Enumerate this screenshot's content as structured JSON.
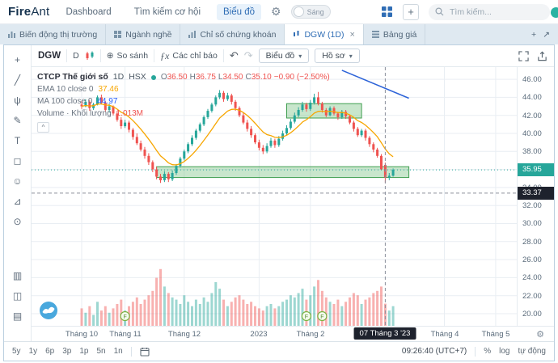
{
  "navbar": {
    "logo_fire": "Fire",
    "logo_ant": "Ant",
    "items": [
      {
        "label": "Dashboard"
      },
      {
        "label": "Tìm kiếm cơ hội"
      },
      {
        "label": "Biểu đồ"
      }
    ],
    "theme_toggle_label": "Sáng",
    "search_placeholder": "Tìm kiếm..."
  },
  "tabbar": {
    "tabs": [
      {
        "label": "Biến động thị trường"
      },
      {
        "label": "Ngành nghề"
      },
      {
        "label": "Chỉ số chứng khoán"
      },
      {
        "label": "DGW (1D)"
      },
      {
        "label": "Bảng giá"
      }
    ],
    "active": "DGW (1D)",
    "close_glyph": "×",
    "add_glyph": "+",
    "popout_glyph": "↗"
  },
  "toolbar": {
    "symbol": "DGW",
    "interval": "D",
    "compare_icon": "⊕",
    "compare": "So sánh",
    "indicators": "Các chỉ báo",
    "undo_glyph": "↶",
    "redo_glyph": "↷",
    "chart_menu": "Biểu đồ",
    "profile_menu": "Hồ sơ",
    "caret": "▾"
  },
  "tools": [
    {
      "name": "crosshair",
      "glyph": "+"
    },
    {
      "name": "trend-line",
      "glyph": "╱"
    },
    {
      "name": "pitchfork",
      "glyph": "ψ"
    },
    {
      "name": "brush",
      "glyph": "✎"
    },
    {
      "name": "text",
      "glyph": "T"
    },
    {
      "name": "shapes",
      "glyph": "◻"
    },
    {
      "name": "emoji",
      "glyph": "☺"
    },
    {
      "name": "measure",
      "glyph": "⊿"
    },
    {
      "name": "zoom",
      "glyph": "⊙"
    },
    {
      "name": "bar-pattern",
      "glyph": "▥",
      "gap": true
    },
    {
      "name": "forecast",
      "glyph": "◫"
    },
    {
      "name": "range-tool",
      "glyph": "▤"
    }
  ],
  "legend": {
    "name": "CTCP Thế giới số",
    "interval": "1D",
    "exchange": "HSX",
    "ohlc": [
      {
        "k": "O",
        "v": "36.50"
      },
      {
        "k": "H",
        "v": "36.75"
      },
      {
        "k": "L",
        "v": "34.50"
      },
      {
        "k": "C",
        "v": "35.10"
      }
    ],
    "change": "−0.90 (−2.50%)",
    "rows": [
      {
        "label": "EMA 10 close 0",
        "value": "37.46",
        "color": "#f7a600"
      },
      {
        "label": "MA 100 close 0",
        "value": "44.97",
        "color": "#2962ff"
      },
      {
        "label": "Volume · Khối lượng",
        "value": "1.013M",
        "color": "#ef5350"
      }
    ],
    "collapse_glyph": "^"
  },
  "chart_data": {
    "type": "candlestick",
    "symbol": "DGW",
    "up_color": "#26a69a",
    "down_color": "#ef5350",
    "ema_color": "#f7a600",
    "ma_color": "#2d63d8",
    "ylim": [
      19.5,
      47.35
    ],
    "candles": [
      [
        43.2,
        43.6,
        42.7,
        43.0
      ],
      [
        43.0,
        43.8,
        42.9,
        43.5
      ],
      [
        43.5,
        43.7,
        42.5,
        42.8
      ],
      [
        42.8,
        43.4,
        42.6,
        43.2
      ],
      [
        43.2,
        44.2,
        43.1,
        44.0
      ],
      [
        44.0,
        44.3,
        43.2,
        43.4
      ],
      [
        43.4,
        43.6,
        42.4,
        42.6
      ],
      [
        42.6,
        43.3,
        42.3,
        43.0
      ],
      [
        43.0,
        43.1,
        42.0,
        42.2
      ],
      [
        42.2,
        42.5,
        41.3,
        41.5
      ],
      [
        41.5,
        41.8,
        40.5,
        40.8
      ],
      [
        40.8,
        41.5,
        40.6,
        41.2
      ],
      [
        41.2,
        41.4,
        40.1,
        40.4
      ],
      [
        40.4,
        40.6,
        39.3,
        39.6
      ],
      [
        39.6,
        40.0,
        38.7,
        38.9
      ],
      [
        38.9,
        39.2,
        38.0,
        38.2
      ],
      [
        38.2,
        38.5,
        37.2,
        37.5
      ],
      [
        37.5,
        37.8,
        36.5,
        36.8
      ],
      [
        36.8,
        37.0,
        35.7,
        36.0
      ],
      [
        36.0,
        36.3,
        34.9,
        35.2
      ],
      [
        35.2,
        35.5,
        34.5,
        34.8
      ],
      [
        34.8,
        35.8,
        34.6,
        35.5
      ],
      [
        35.5,
        35.7,
        34.6,
        34.9
      ],
      [
        34.9,
        35.9,
        34.7,
        35.6
      ],
      [
        35.6,
        36.6,
        35.4,
        36.4
      ],
      [
        36.4,
        37.4,
        36.2,
        37.2
      ],
      [
        37.2,
        38.2,
        37.0,
        38.0
      ],
      [
        38.0,
        39.0,
        37.8,
        38.8
      ],
      [
        38.8,
        39.8,
        38.6,
        39.5
      ],
      [
        39.5,
        40.5,
        39.3,
        40.3
      ],
      [
        40.3,
        41.2,
        40.1,
        41.0
      ],
      [
        41.0,
        42.0,
        40.8,
        41.8
      ],
      [
        41.8,
        42.7,
        41.6,
        42.5
      ],
      [
        42.5,
        43.4,
        42.3,
        43.2
      ],
      [
        43.2,
        44.2,
        43.0,
        44.0
      ],
      [
        44.0,
        44.8,
        43.8,
        44.5
      ],
      [
        44.5,
        44.7,
        43.5,
        43.8
      ],
      [
        43.8,
        44.5,
        43.6,
        44.2
      ],
      [
        44.2,
        44.4,
        43.2,
        43.5
      ],
      [
        43.5,
        43.7,
        42.5,
        42.8
      ],
      [
        42.8,
        43.0,
        41.8,
        42.0
      ],
      [
        42.0,
        42.3,
        41.0,
        41.2
      ],
      [
        41.2,
        41.5,
        40.2,
        40.5
      ],
      [
        40.5,
        40.8,
        39.5,
        39.8
      ],
      [
        39.8,
        40.0,
        38.8,
        39.0
      ],
      [
        39.0,
        39.3,
        38.1,
        38.4
      ],
      [
        38.4,
        38.7,
        37.7,
        38.0
      ],
      [
        38.0,
        38.9,
        37.8,
        38.6
      ],
      [
        38.6,
        39.5,
        38.4,
        39.2
      ],
      [
        39.2,
        39.4,
        38.4,
        38.7
      ],
      [
        38.7,
        39.7,
        38.5,
        39.4
      ],
      [
        39.4,
        40.3,
        39.2,
        40.0
      ],
      [
        40.0,
        40.9,
        39.8,
        40.6
      ],
      [
        40.6,
        41.6,
        40.4,
        41.3
      ],
      [
        41.3,
        42.3,
        41.1,
        42.0
      ],
      [
        42.0,
        42.9,
        41.8,
        42.6
      ],
      [
        42.6,
        43.5,
        42.4,
        43.2
      ],
      [
        43.2,
        43.4,
        42.4,
        42.7
      ],
      [
        42.7,
        43.7,
        42.5,
        43.4
      ],
      [
        43.4,
        44.4,
        43.2,
        44.0
      ],
      [
        44.0,
        44.6,
        43.1,
        43.3
      ],
      [
        43.3,
        43.5,
        42.3,
        42.6
      ],
      [
        42.6,
        42.8,
        41.8,
        42.0
      ],
      [
        42.0,
        43.0,
        41.9,
        42.8
      ],
      [
        42.8,
        43.0,
        42.0,
        42.2
      ],
      [
        42.2,
        42.4,
        41.5,
        41.8
      ],
      [
        41.8,
        42.6,
        41.6,
        42.4
      ],
      [
        42.4,
        42.6,
        41.6,
        41.9
      ],
      [
        41.9,
        42.1,
        41.0,
        41.2
      ],
      [
        41.2,
        41.4,
        40.2,
        40.5
      ],
      [
        40.5,
        40.7,
        39.6,
        39.8
      ],
      [
        39.8,
        40.5,
        39.6,
        40.3
      ],
      [
        40.3,
        40.5,
        39.2,
        39.5
      ],
      [
        39.5,
        39.7,
        38.5,
        38.8
      ],
      [
        38.8,
        39.0,
        37.9,
        38.2
      ],
      [
        38.2,
        38.4,
        37.3,
        37.5
      ],
      [
        37.5,
        37.7,
        35.9,
        36.0
      ],
      [
        36.5,
        36.75,
        34.5,
        35.1
      ],
      [
        35.1,
        35.6,
        34.8,
        35.3
      ],
      [
        35.3,
        36.1,
        35.2,
        35.95
      ]
    ],
    "volumes": [
      0.8,
      0.6,
      0.9,
      0.5,
      1.1,
      0.7,
      0.9,
      0.6,
      0.8,
      1.0,
      1.2,
      0.7,
      0.9,
      1.1,
      1.3,
      1.0,
      1.2,
      1.4,
      1.6,
      2.2,
      2.6,
      1.8,
      1.5,
      1.3,
      1.2,
      1.0,
      1.4,
      1.1,
      0.9,
      1.2,
      1.0,
      1.3,
      1.1,
      1.5,
      2.0,
      1.7,
      1.2,
      0.9,
      1.1,
      1.3,
      1.4,
      1.2,
      1.0,
      1.1,
      0.9,
      0.8,
      0.7,
      0.9,
      1.0,
      0.8,
      0.9,
      1.1,
      1.2,
      1.4,
      1.3,
      1.5,
      1.7,
      1.2,
      1.4,
      1.8,
      2.1,
      1.6,
      1.3,
      1.1,
      1.0,
      1.2,
      0.9,
      1.1,
      1.3,
      1.5,
      1.4,
      1.0,
      1.2,
      1.3,
      1.5,
      1.6,
      1.8,
      1.013,
      0.7,
      0.9
    ],
    "zones": [
      {
        "d1": 19,
        "d2": 83,
        "price_top": 36.3,
        "price_bottom": 35.1
      },
      {
        "d1": 52,
        "d2": 71,
        "price_top": 43.3,
        "price_bottom": 41.7
      }
    ],
    "ma100": {
      "d1": 66,
      "p1": 47.0,
      "d2": 83,
      "p2": 43.9
    },
    "markers": [
      {
        "day": 11,
        "label": "F"
      },
      {
        "day": 57,
        "label": "F"
      },
      {
        "day": 61,
        "label": "F"
      }
    ],
    "crosshair": {
      "day": 77,
      "price": 33.37,
      "date_label": "07 Tháng 3 '23"
    },
    "last_price": 35.95,
    "time_labels": [
      {
        "label": "Tháng 10",
        "day": 0
      },
      {
        "label": "Tháng 11",
        "day": 11
      },
      {
        "label": "Tháng 12",
        "day": 26
      },
      {
        "label": "2023",
        "day": 45
      },
      {
        "label": "Tháng 2",
        "day": 58
      },
      {
        "label": "Tháng 4",
        "day": 92
      },
      {
        "label": "Tháng 5",
        "day": 105
      }
    ],
    "price_labels": [
      "46.00",
      "44.00",
      "42.00",
      "40.00",
      "38.00",
      "36.00",
      "34.00",
      "32.00",
      "30.00",
      "28.00",
      "26.00",
      "24.00",
      "22.00",
      "20.00"
    ]
  },
  "badges": {
    "last_price": "35.95",
    "crosshair_price": "33.37"
  },
  "bottom_bar": {
    "ranges": [
      "5y",
      "1y",
      "6p",
      "3p",
      "1p",
      "5n",
      "1n"
    ],
    "clock": "09:26:40 (UTC+7)",
    "options": [
      "%",
      "log",
      "tự động"
    ]
  }
}
